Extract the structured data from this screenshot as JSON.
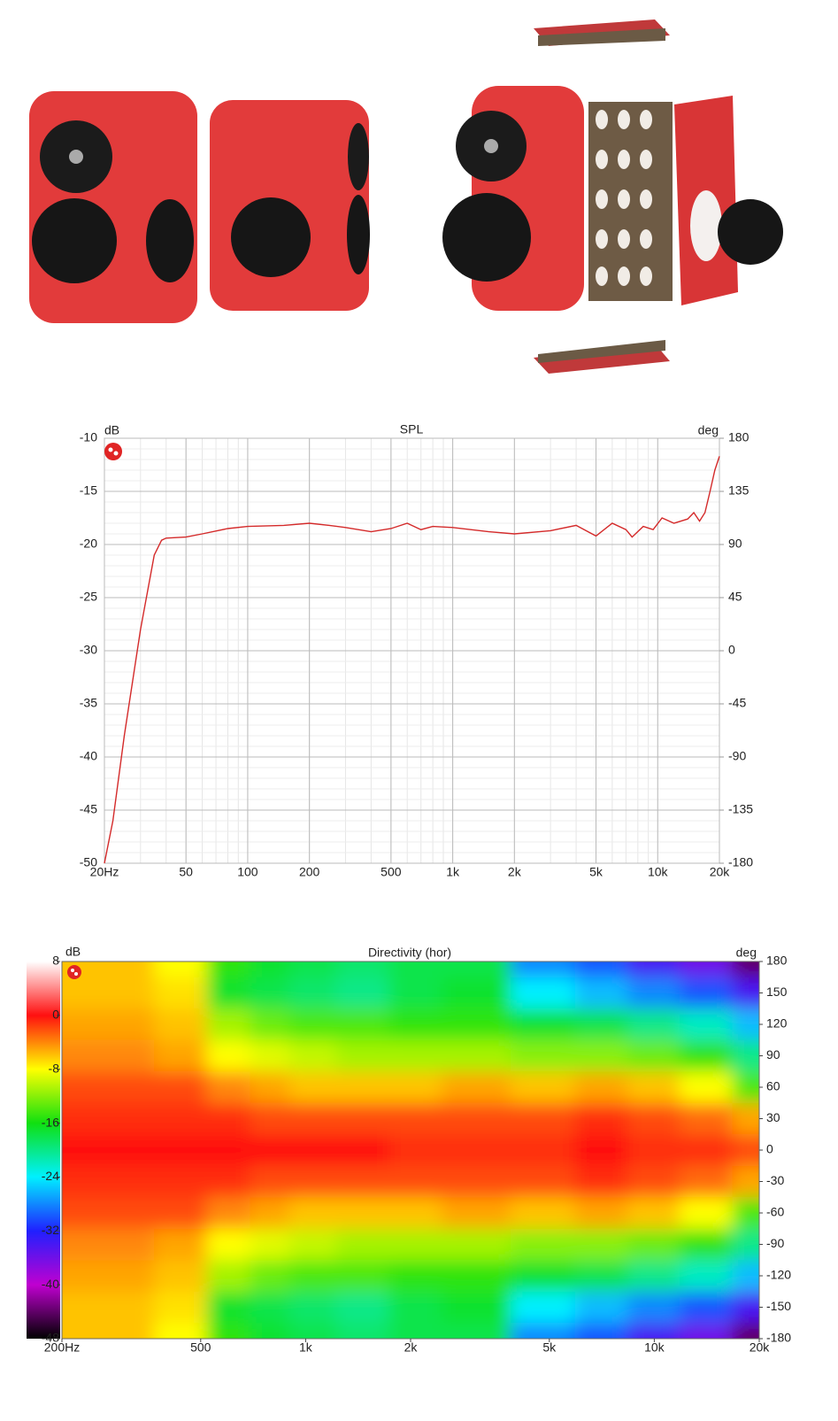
{
  "chart_data": [
    {
      "type": "line",
      "title": "SPL",
      "y_label": "dB",
      "y2_label": "deg",
      "x_scale": "log",
      "grid": true,
      "minor_grid": true,
      "color": "#d42a2a",
      "xlim": [
        20,
        20000
      ],
      "xticks": [
        {
          "value": 20,
          "label": "20Hz"
        },
        50,
        100,
        200,
        500,
        {
          "value": 1000,
          "label": "1k"
        },
        {
          "value": 2000,
          "label": "2k"
        },
        {
          "value": 5000,
          "label": "5k"
        },
        {
          "value": 10000,
          "label": "10k"
        },
        {
          "value": 20000,
          "label": "20k"
        }
      ],
      "ylim": [
        -50,
        -10
      ],
      "yticks": [
        -50,
        -45,
        -40,
        -35,
        -30,
        -25,
        -20,
        -15,
        -10
      ],
      "y2lim": [
        -180,
        180
      ],
      "y2ticks": [
        -180,
        -135,
        -90,
        -45,
        0,
        45,
        90,
        135,
        180
      ],
      "x": [
        20,
        22,
        25,
        30,
        35,
        38,
        40,
        50,
        60,
        80,
        100,
        150,
        200,
        250,
        300,
        400,
        500,
        600,
        700,
        800,
        1000,
        1500,
        2000,
        3000,
        4000,
        5000,
        6000,
        7000,
        7500,
        8500,
        9500,
        10500,
        12000,
        14000,
        15000,
        16000,
        17000,
        18000,
        19000,
        20000
      ],
      "values": [
        -50,
        -46,
        -38,
        -28,
        -21,
        -19.6,
        -19.4,
        -19.3,
        -19,
        -18.5,
        -18.3,
        -18.2,
        -18,
        -18.2,
        -18.4,
        -18.8,
        -18.5,
        -18,
        -18.6,
        -18.3,
        -18.4,
        -18.8,
        -19,
        -18.7,
        -18.2,
        -19.2,
        -18,
        -18.6,
        -19.3,
        -18.3,
        -18.6,
        -17.5,
        -18,
        -17.6,
        -17,
        -17.8,
        -17,
        -15,
        -13,
        -11.7
      ]
    },
    {
      "type": "heatmap",
      "title": "Directivity (hor)",
      "colorbar_label": "dB",
      "y_label": "deg",
      "x_scale": "log",
      "xlim": [
        200,
        20000
      ],
      "xticks": [
        {
          "value": 200,
          "label": "200Hz"
        },
        500,
        {
          "value": 1000,
          "label": "1k"
        },
        {
          "value": 2000,
          "label": "2k"
        },
        {
          "value": 5000,
          "label": "5k"
        },
        {
          "value": 10000,
          "label": "10k"
        },
        {
          "value": 20000,
          "label": "20k"
        }
      ],
      "ylim": [
        -180,
        180
      ],
      "yticks": [
        180,
        150,
        120,
        90,
        60,
        30,
        0,
        -30,
        -60,
        -90,
        -120,
        -150,
        -180
      ],
      "clim": [
        -48,
        8
      ],
      "cticks": [
        8,
        0,
        -8,
        -16,
        -24,
        -32,
        -40,
        -48
      ],
      "ccolors": [
        "#ffffff",
        "#ff1010",
        "#ffff00",
        "#10e010",
        "#00f0ff",
        "#2020ff",
        "#c000d0",
        "#000000"
      ],
      "x": [
        200,
        300,
        450,
        600,
        800,
        1000,
        1500,
        2000,
        3000,
        5000,
        7000,
        10000,
        14000,
        20000
      ],
      "y": [
        180,
        150,
        120,
        90,
        60,
        30,
        0,
        -30,
        -60,
        -90,
        -120,
        -150,
        -180
      ],
      "z": [
        [
          -6,
          -6,
          -8,
          -15,
          -17,
          -18,
          -19,
          -18,
          -18,
          -28,
          -30,
          -34,
          -36,
          -44
        ],
        [
          -6,
          -6,
          -7,
          -17,
          -18,
          -19,
          -20,
          -18,
          -17,
          -24,
          -26,
          -28,
          -30,
          -34
        ],
        [
          -5,
          -5,
          -6,
          -11,
          -13,
          -14,
          -14,
          -15,
          -15,
          -17,
          -18,
          -20,
          -22,
          -26
        ],
        [
          -4,
          -4,
          -5,
          -8,
          -9,
          -10,
          -11,
          -11,
          -11,
          -12,
          -12,
          -13,
          -15,
          -20
        ],
        [
          -2,
          -2,
          -2,
          -4,
          -5,
          -6,
          -6,
          -6,
          -5,
          -6,
          -5,
          -6,
          -8,
          -14
        ],
        [
          -1,
          -1,
          -1,
          -1,
          -2,
          -2,
          -2,
          -2,
          -2,
          -2,
          -1,
          -2,
          -3,
          -5
        ],
        [
          0,
          0,
          0,
          0,
          0,
          0,
          0,
          -1,
          -1,
          -1,
          0,
          -1,
          -1,
          -2
        ],
        [
          -1,
          -1,
          -1,
          -1,
          -2,
          -2,
          -2,
          -2,
          -2,
          -2,
          -1,
          -2,
          -3,
          -5
        ],
        [
          -2,
          -2,
          -2,
          -4,
          -5,
          -6,
          -6,
          -6,
          -5,
          -6,
          -5,
          -6,
          -8,
          -14
        ],
        [
          -4,
          -4,
          -5,
          -8,
          -9,
          -10,
          -11,
          -11,
          -11,
          -12,
          -12,
          -13,
          -15,
          -20
        ],
        [
          -5,
          -5,
          -6,
          -11,
          -13,
          -14,
          -14,
          -15,
          -15,
          -17,
          -18,
          -20,
          -22,
          -26
        ],
        [
          -6,
          -6,
          -7,
          -17,
          -18,
          -19,
          -20,
          -18,
          -17,
          -24,
          -26,
          -28,
          -30,
          -34
        ],
        [
          -6,
          -6,
          -8,
          -15,
          -17,
          -18,
          -19,
          -18,
          -18,
          -28,
          -30,
          -34,
          -36,
          -44
        ]
      ]
    }
  ]
}
